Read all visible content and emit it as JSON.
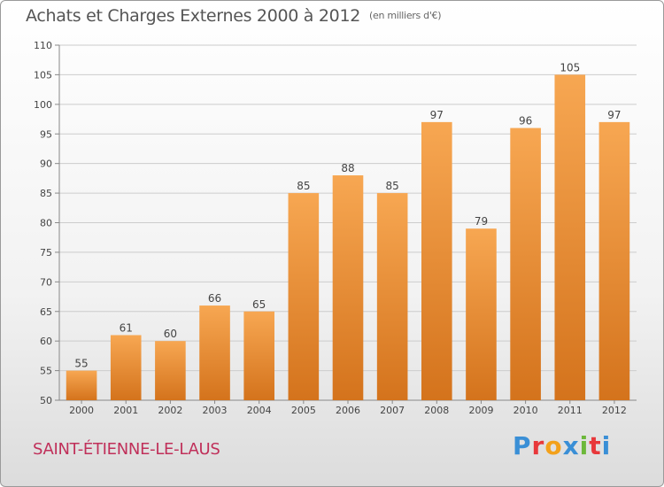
{
  "header": {
    "title": "Achats et Charges Externes 2000 à 2012",
    "unit": "(en milliers d'€)"
  },
  "footer": {
    "commune": "SAINT-ÉTIENNE-LE-LAUS",
    "logo": "Proxiti"
  },
  "colors": {
    "bar_top": "#f7a752",
    "bar_bottom": "#d4731c",
    "grid": "#cccccc",
    "commune": "#c0305a"
  },
  "chart_data": {
    "type": "bar",
    "categories": [
      "2000",
      "2001",
      "2002",
      "2003",
      "2004",
      "2005",
      "2006",
      "2007",
      "2008",
      "2009",
      "2010",
      "2011",
      "2012"
    ],
    "values": [
      55,
      61,
      60,
      66,
      65,
      85,
      88,
      85,
      97,
      79,
      96,
      105,
      97
    ],
    "title": "Achats et Charges Externes 2000 à 2012",
    "ylim": [
      50,
      110
    ],
    "yticks": [
      50,
      55,
      60,
      65,
      70,
      75,
      80,
      85,
      90,
      95,
      100,
      105,
      110
    ],
    "grid": true,
    "data_labels": true
  }
}
